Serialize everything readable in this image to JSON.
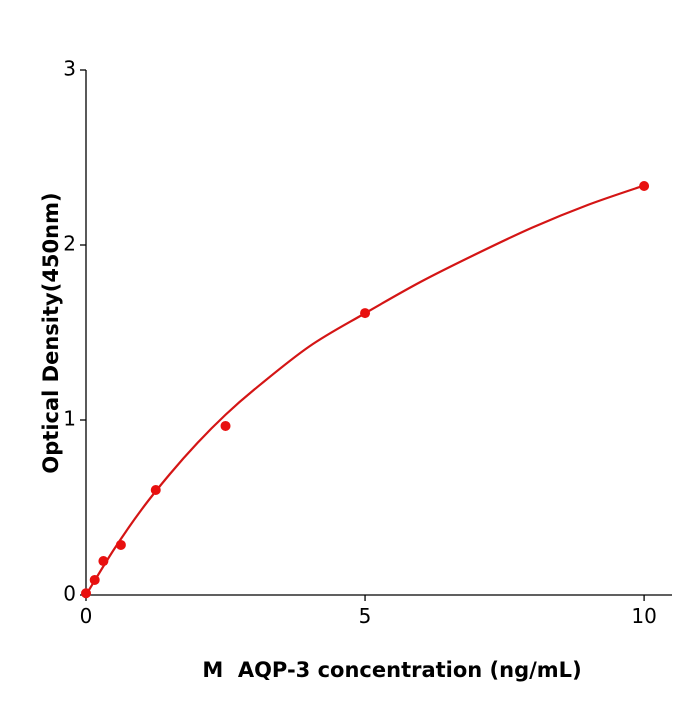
{
  "chart_data": {
    "type": "scatter",
    "xlabel": "M  AQP-3 concentration (ng/mL)",
    "ylabel": "Optical Density(450nm)",
    "xlim": [
      0,
      10.5
    ],
    "ylim": [
      0,
      3
    ],
    "xticks": [
      0,
      5,
      10
    ],
    "yticks": [
      0,
      1,
      2,
      3
    ],
    "grid": false,
    "series": [
      {
        "type": "line",
        "color": "#d41515",
        "x": [
          0,
          0.5,
          1,
          1.5,
          2,
          2.5,
          3,
          4,
          5,
          6,
          7,
          8,
          9,
          10
        ],
        "values": [
          0,
          0.26,
          0.49,
          0.69,
          0.87,
          1.03,
          1.17,
          1.42,
          1.61,
          1.79,
          1.95,
          2.1,
          2.23,
          2.34
        ]
      },
      {
        "type": "scatter",
        "color": "#e8100f",
        "x": [
          0,
          0.156,
          0.312,
          0.625,
          1.25,
          2.5,
          5,
          10
        ],
        "values": [
          0.01,
          0.086,
          0.194,
          0.286,
          0.6,
          0.966,
          1.611,
          2.337
        ]
      }
    ]
  }
}
